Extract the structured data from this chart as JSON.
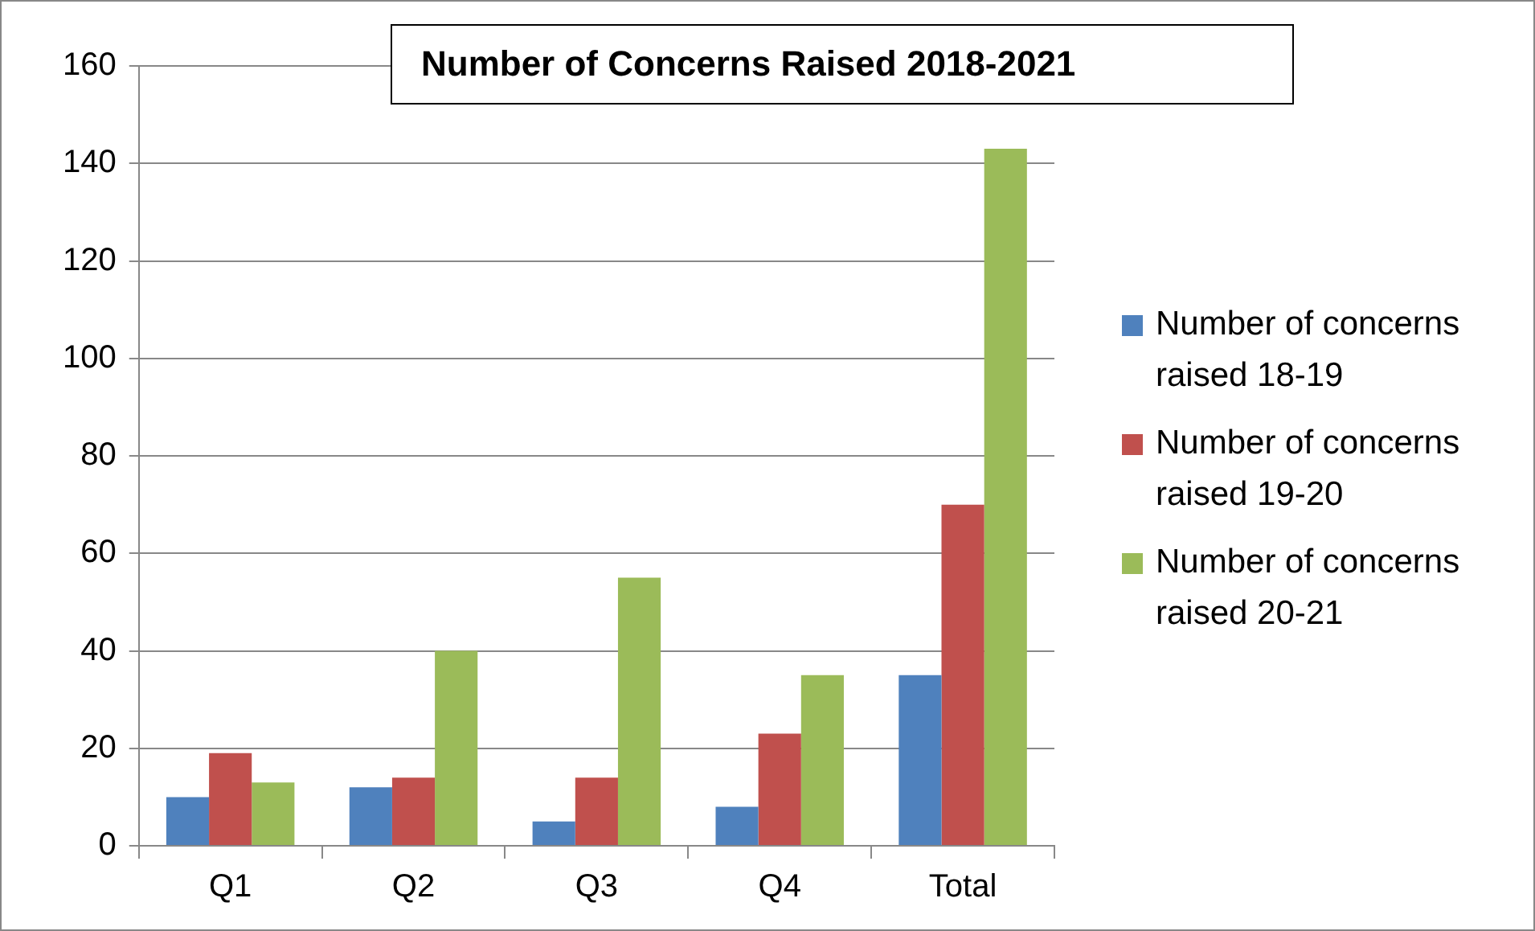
{
  "chart_data": {
    "type": "bar",
    "title": "Number of Concerns Raised 2018-2021",
    "categories": [
      "Q1",
      "Q2",
      "Q3",
      "Q4",
      "Total"
    ],
    "series": [
      {
        "name": "Number of concerns raised 18-19",
        "color": "#4f81bd",
        "values": [
          10,
          12,
          5,
          8,
          35
        ]
      },
      {
        "name": "Number of concerns raised 19-20",
        "color": "#c0504d",
        "values": [
          19,
          14,
          14,
          23,
          70
        ]
      },
      {
        "name": "Number of concerns raised 20-21",
        "color": "#9bbb59",
        "values": [
          13,
          40,
          55,
          35,
          143
        ]
      }
    ],
    "ylim": [
      0,
      160
    ],
    "yticks": [
      0,
      20,
      40,
      60,
      80,
      100,
      120,
      140,
      160
    ],
    "grid": "y",
    "legend": "right"
  }
}
